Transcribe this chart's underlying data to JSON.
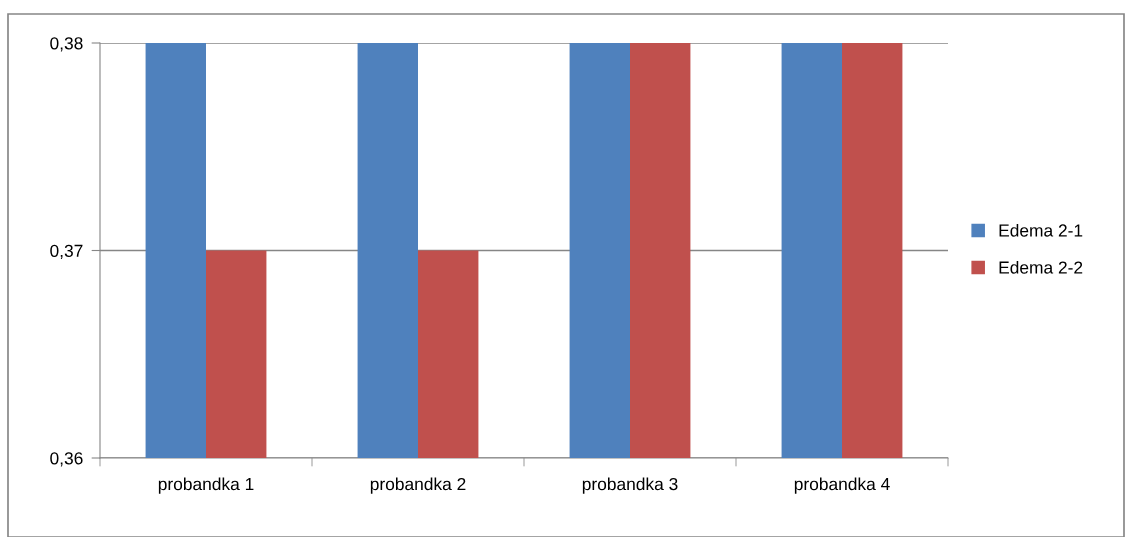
{
  "chart_data": {
    "type": "bar",
    "categories": [
      "probandka 1",
      "probandka 2",
      "probandka 3",
      "probandka 4"
    ],
    "series": [
      {
        "name": "Edema 2-1",
        "color": "#4f81bd",
        "values": [
          0.38,
          0.38,
          0.38,
          0.38
        ]
      },
      {
        "name": "Edema 2-2",
        "color": "#c0504d",
        "values": [
          0.37,
          0.37,
          0.38,
          0.38
        ]
      }
    ],
    "ylim": [
      0.36,
      0.38
    ],
    "yticks": [
      {
        "value": 0.36,
        "label": "0,36"
      },
      {
        "value": 0.37,
        "label": "0,37"
      },
      {
        "value": 0.38,
        "label": "0,38"
      }
    ],
    "grid": "y",
    "legend": "right"
  }
}
